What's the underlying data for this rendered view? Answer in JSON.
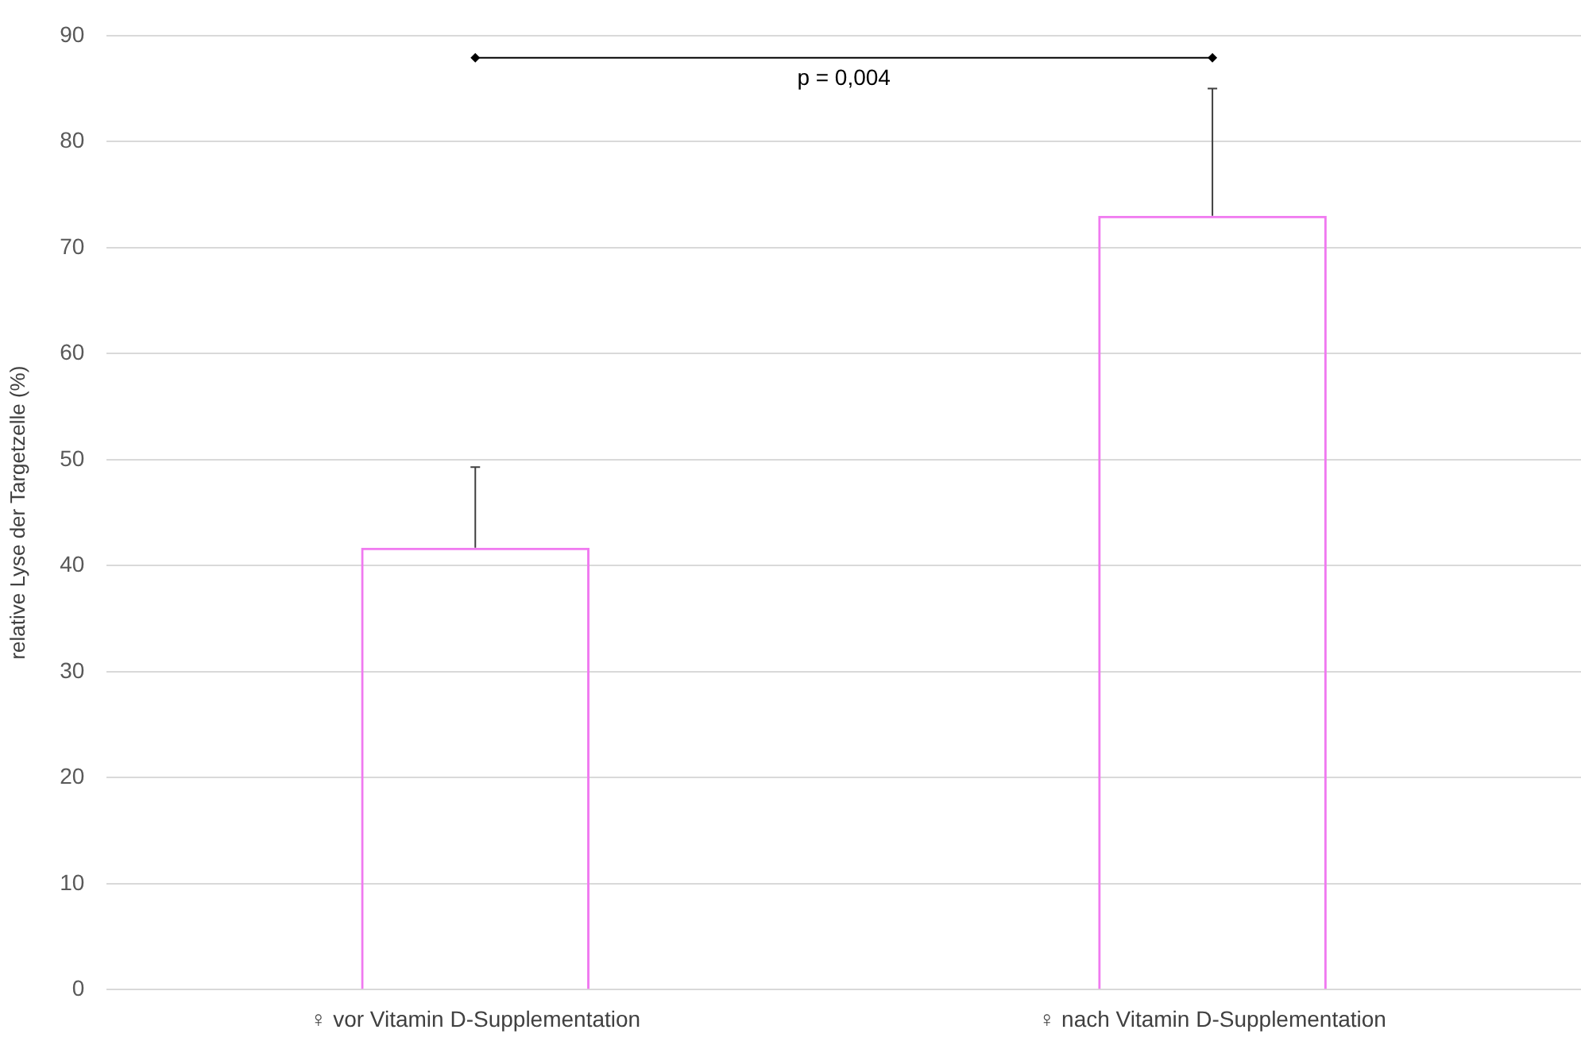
{
  "chart_data": {
    "type": "bar",
    "ylabel": "relative Lyse der Targetzelle (%)",
    "categories": [
      "♀ vor Vitamin D-Supplementation",
      "♀ nach Vitamin D-Supplementation"
    ],
    "values": [
      41.7,
      73
    ],
    "color": "#f07af0",
    "errors": [
      [
        41.7,
        49.3
      ],
      [
        73,
        85
      ]
    ],
    "ylim": [
      0,
      90
    ],
    "yticks": [
      0,
      10,
      20,
      30,
      40,
      50,
      60,
      70,
      80,
      90
    ],
    "grid": "y",
    "annotations": [
      "p = 0,004"
    ]
  }
}
